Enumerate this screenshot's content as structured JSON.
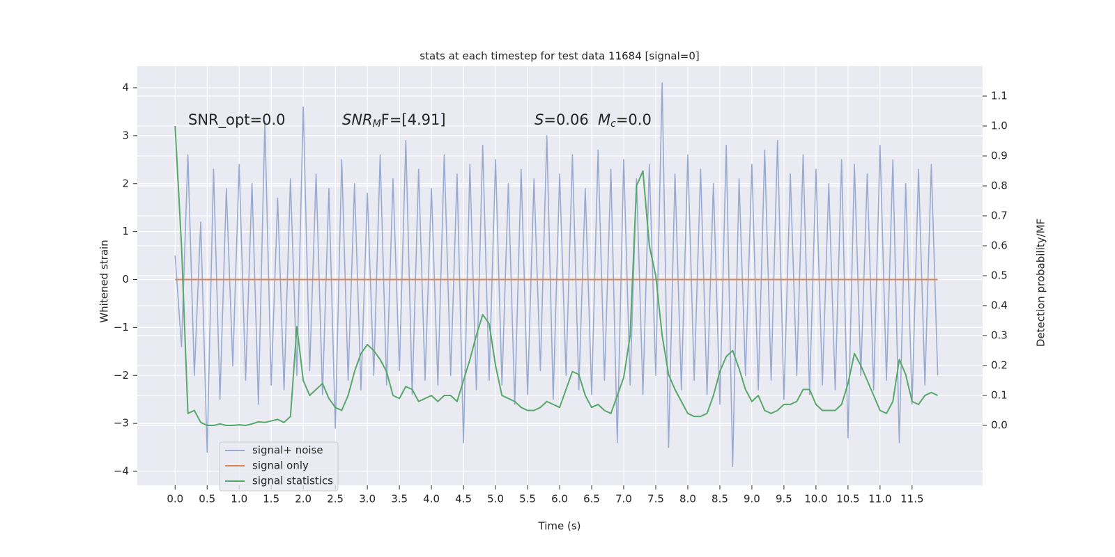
{
  "chart_data": {
    "type": "line",
    "title": "stats at each timestep for test data 11684 [signal=0]",
    "xlabel": "Time (s)",
    "ylabel": "Whitened strain",
    "y2label": "Detection probability/MF",
    "annotations": [
      "SNR_opt=0.0",
      {
        "base": "SNR",
        "sub": "M",
        "tail": "F=[4.91]"
      },
      {
        "base": "S",
        "tail": "=0.06"
      },
      {
        "base": "M",
        "sub": "c",
        "tail": "=0.0"
      }
    ],
    "x": [
      0.0,
      0.1,
      0.2,
      0.3,
      0.4,
      0.5,
      0.6,
      0.7,
      0.8,
      0.9,
      1.0,
      1.1,
      1.2,
      1.3,
      1.4,
      1.5,
      1.6,
      1.7,
      1.8,
      1.9,
      2.0,
      2.1,
      2.2,
      2.3,
      2.4,
      2.5,
      2.6,
      2.7,
      2.8,
      2.9,
      3.0,
      3.1,
      3.2,
      3.3,
      3.4,
      3.5,
      3.6,
      3.7,
      3.8,
      3.9,
      4.0,
      4.1,
      4.2,
      4.3,
      4.4,
      4.5,
      4.6,
      4.7,
      4.8,
      4.9,
      5.0,
      5.1,
      5.2,
      5.3,
      5.4,
      5.5,
      5.6,
      5.7,
      5.8,
      5.9,
      6.0,
      6.1,
      6.2,
      6.3,
      6.4,
      6.5,
      6.6,
      6.7,
      6.8,
      6.9,
      7.0,
      7.1,
      7.2,
      7.3,
      7.4,
      7.5,
      7.6,
      7.7,
      7.8,
      7.9,
      8.0,
      8.1,
      8.2,
      8.3,
      8.4,
      8.5,
      8.6,
      8.7,
      8.8,
      8.9,
      9.0,
      9.1,
      9.2,
      9.3,
      9.4,
      9.5,
      9.6,
      9.7,
      9.8,
      9.9,
      10.0,
      10.1,
      10.2,
      10.3,
      10.4,
      10.5,
      10.6,
      10.7,
      10.8,
      10.9,
      11.0,
      11.1,
      11.2,
      11.3,
      11.4,
      11.5,
      11.6,
      11.7,
      11.8,
      11.9
    ],
    "series": [
      {
        "name": "signal+ noise",
        "color": "#99aad1",
        "values": [
          0.5,
          -1.4,
          2.6,
          -2.0,
          1.2,
          -3.6,
          2.3,
          -2.5,
          1.9,
          -1.8,
          2.4,
          -2.1,
          2.0,
          -2.6,
          3.3,
          -2.2,
          1.7,
          -2.3,
          2.1,
          -2.0,
          3.6,
          -1.9,
          2.2,
          -2.4,
          1.9,
          -3.1,
          2.5,
          -2.1,
          2.0,
          -2.3,
          1.8,
          -2.0,
          2.6,
          -2.2,
          2.1,
          -1.9,
          2.9,
          -2.4,
          2.3,
          -2.1,
          1.9,
          -2.2,
          2.6,
          -2.0,
          2.2,
          -3.4,
          2.4,
          -2.3,
          2.8,
          -2.1,
          2.5,
          -2.2,
          2.0,
          -2.6,
          2.3,
          -2.4,
          2.1,
          -1.9,
          3.0,
          -2.5,
          2.2,
          -2.0,
          2.6,
          -2.3,
          1.9,
          -2.4,
          2.7,
          -2.1,
          2.3,
          -3.4,
          2.5,
          -2.2,
          2.1,
          -2.4,
          2.4,
          -2.0,
          4.1,
          -3.5,
          2.2,
          -2.3,
          2.6,
          -2.1,
          2.3,
          -2.4,
          2.0,
          -2.6,
          2.8,
          -3.9,
          2.1,
          -2.0,
          2.4,
          -2.3,
          2.7,
          -2.1,
          2.9,
          -2.5,
          2.2,
          -2.0,
          2.6,
          -2.4,
          2.3,
          -2.2,
          2.0,
          -2.3,
          2.5,
          -3.3,
          2.4,
          -2.0,
          2.2,
          -2.3,
          2.8,
          -2.1,
          2.5,
          -3.4,
          2.0,
          -2.6,
          2.3,
          -2.2,
          2.4,
          -2.0
        ]
      },
      {
        "name": "signal only",
        "color": "#dd8452",
        "values": [
          0,
          0,
          0,
          0,
          0,
          0,
          0,
          0,
          0,
          0,
          0,
          0,
          0,
          0,
          0,
          0,
          0,
          0,
          0,
          0,
          0,
          0,
          0,
          0,
          0,
          0,
          0,
          0,
          0,
          0,
          0,
          0,
          0,
          0,
          0,
          0,
          0,
          0,
          0,
          0,
          0,
          0,
          0,
          0,
          0,
          0,
          0,
          0,
          0,
          0,
          0,
          0,
          0,
          0,
          0,
          0,
          0,
          0,
          0,
          0,
          0,
          0,
          0,
          0,
          0,
          0,
          0,
          0,
          0,
          0,
          0,
          0,
          0,
          0,
          0,
          0,
          0,
          0,
          0,
          0,
          0,
          0,
          0,
          0,
          0,
          0,
          0,
          0,
          0,
          0,
          0,
          0,
          0,
          0,
          0,
          0,
          0,
          0,
          0,
          0,
          0,
          0,
          0,
          0,
          0,
          0,
          0,
          0,
          0,
          0,
          0,
          0,
          0,
          0,
          0,
          0,
          0,
          0,
          0,
          0
        ]
      },
      {
        "name": "signal statistics",
        "color": "#55a868",
        "axis": "y2",
        "values": [
          1.0,
          0.6,
          0.04,
          0.05,
          0.01,
          0.0,
          0.0,
          0.005,
          0.0,
          0.0,
          0.002,
          0.0,
          0.005,
          0.012,
          0.01,
          0.015,
          0.02,
          0.01,
          0.03,
          0.33,
          0.15,
          0.1,
          0.12,
          0.14,
          0.09,
          0.06,
          0.05,
          0.1,
          0.18,
          0.24,
          0.27,
          0.25,
          0.22,
          0.18,
          0.1,
          0.09,
          0.13,
          0.12,
          0.08,
          0.09,
          0.1,
          0.08,
          0.1,
          0.1,
          0.08,
          0.15,
          0.22,
          0.3,
          0.37,
          0.34,
          0.2,
          0.1,
          0.09,
          0.08,
          0.06,
          0.05,
          0.05,
          0.06,
          0.08,
          0.07,
          0.06,
          0.12,
          0.18,
          0.17,
          0.1,
          0.06,
          0.07,
          0.05,
          0.04,
          0.1,
          0.16,
          0.3,
          0.8,
          0.85,
          0.6,
          0.5,
          0.3,
          0.17,
          0.12,
          0.08,
          0.04,
          0.03,
          0.03,
          0.04,
          0.1,
          0.18,
          0.23,
          0.25,
          0.19,
          0.12,
          0.08,
          0.1,
          0.05,
          0.04,
          0.05,
          0.07,
          0.07,
          0.08,
          0.12,
          0.12,
          0.07,
          0.05,
          0.05,
          0.05,
          0.07,
          0.14,
          0.24,
          0.2,
          0.15,
          0.1,
          0.05,
          0.04,
          0.08,
          0.22,
          0.17,
          0.08,
          0.07,
          0.1,
          0.11,
          0.1
        ]
      }
    ],
    "xlim": [
      -0.59,
      12.6
    ],
    "ylim": [
      -4.29,
      4.45
    ],
    "y2lim": [
      -0.2,
      1.2
    ],
    "xticks": [
      {
        "value": 0,
        "label": "0.0"
      },
      0.5,
      {
        "value": 1,
        "label": "1.0"
      },
      1.5,
      {
        "value": 2,
        "label": "2.0"
      },
      2.5,
      {
        "value": 3,
        "label": "3.0"
      },
      3.5,
      {
        "value": 4,
        "label": "4.0"
      },
      4.5,
      {
        "value": 5,
        "label": "5.0"
      },
      5.5,
      {
        "value": 6,
        "label": "6.0"
      },
      6.5,
      {
        "value": 7,
        "label": "7.0"
      },
      7.5,
      {
        "value": 8,
        "label": "8.0"
      },
      8.5,
      {
        "value": 9,
        "label": "9.0"
      },
      9.5,
      {
        "value": 10,
        "label": "10.0"
      },
      10.5,
      {
        "value": 11,
        "label": "11.0"
      },
      11.5
    ],
    "yticks": [
      {
        "value": -4,
        "label": "−4"
      },
      {
        "value": -3,
        "label": "−3"
      },
      {
        "value": -2,
        "label": "−2"
      },
      {
        "value": -1,
        "label": "−1"
      },
      0,
      1,
      2,
      3,
      4
    ],
    "y2ticks": [
      {
        "value": 0,
        "label": "0.0"
      },
      0.1,
      0.2,
      0.3,
      0.4,
      0.5,
      0.6,
      0.7,
      0.8,
      0.9,
      {
        "value": 1,
        "label": "1.0"
      },
      1.1
    ],
    "grid": true,
    "legend": "lower left"
  }
}
